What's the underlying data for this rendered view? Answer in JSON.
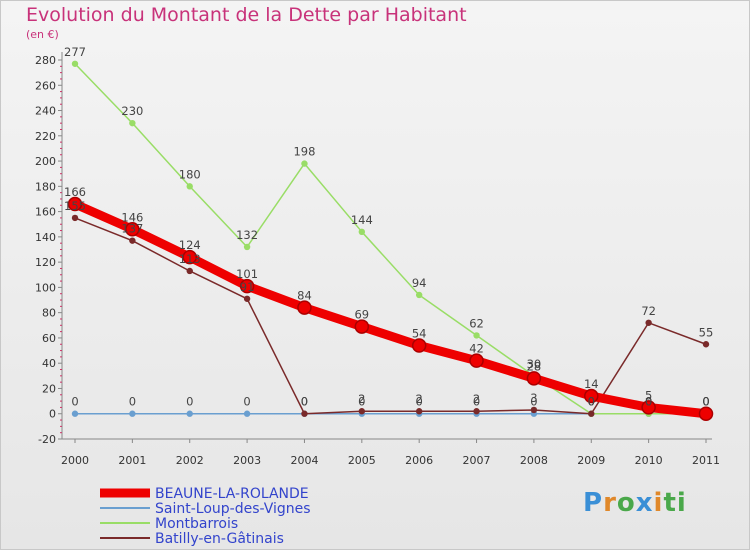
{
  "header": {
    "title": "Evolution du Montant de la Dette par Habitant",
    "unit": "(en €)"
  },
  "logo": {
    "text": "Proxiti",
    "letters": [
      "P",
      "r",
      "o",
      "x",
      "i",
      "ti"
    ]
  },
  "chart_data": {
    "type": "line",
    "title": "Evolution du Montant de la Dette par Habitant",
    "ylabel": "(en €)",
    "xlabel": "",
    "x": [
      "2000",
      "2001",
      "2002",
      "2003",
      "2004",
      "2005",
      "2006",
      "2007",
      "2008",
      "2009",
      "2010",
      "2011"
    ],
    "ylim": [
      -20,
      280
    ],
    "yticks": [
      -20,
      0,
      20,
      40,
      60,
      80,
      100,
      120,
      140,
      160,
      180,
      200,
      220,
      240,
      260,
      280
    ],
    "grid": false,
    "legend_position": "bottom-left",
    "series": [
      {
        "name": "BEAUNE-LA-ROLANDE",
        "color": "#ee0000",
        "values": [
          166,
          146,
          124,
          101,
          84,
          69,
          54,
          42,
          28,
          14,
          5,
          0
        ],
        "labels": [
          "166",
          "146",
          "124",
          "101",
          "84",
          "69",
          "54",
          "42",
          "28",
          "14",
          "5",
          "0"
        ]
      },
      {
        "name": "Saint-Loup-des-Vignes",
        "color": "#6a9fd0",
        "values": [
          0,
          0,
          0,
          0,
          0,
          0,
          0,
          0,
          0,
          0,
          0,
          0
        ],
        "labels": [
          "0",
          "0",
          "0",
          "0",
          "0",
          "0",
          "0",
          "0",
          "0",
          "0",
          "0",
          "0"
        ]
      },
      {
        "name": "Montbarrois",
        "color": "#99dd66",
        "values": [
          277,
          230,
          180,
          132,
          198,
          144,
          94,
          62,
          30,
          0,
          0,
          0
        ],
        "labels": [
          "277",
          "230",
          "180",
          "132",
          "198",
          "144",
          "94",
          "62",
          "30",
          "0",
          "0",
          "0"
        ]
      },
      {
        "name": "Batilly-en-Gâtinais",
        "color": "#7a2a2a",
        "values": [
          155,
          137,
          113,
          91,
          0,
          2,
          2,
          2,
          3,
          0,
          72,
          55
        ],
        "labels": [
          "155",
          "137",
          "113",
          "91",
          "0",
          "2",
          "2",
          "2",
          "3",
          "0",
          "72",
          "55"
        ]
      }
    ]
  }
}
